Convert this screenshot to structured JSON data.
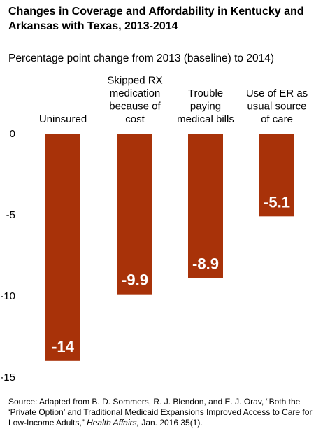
{
  "chart_data": {
    "type": "bar",
    "title": "Changes in Coverage and Affordability in Kentucky and Arkansas with Texas, 2013-2014",
    "subtitle": "Percentage point change from 2013 (baseline) to 2014)",
    "categories": [
      "Uninsured",
      "Skipped RX medication because of cost",
      "Trouble paying medical bills",
      "Use of ER as usual source of care"
    ],
    "category_lines": [
      [
        "Uninsured"
      ],
      [
        "Skipped RX",
        "medication",
        "because of",
        "cost"
      ],
      [
        "Trouble",
        "paying",
        "medical bills"
      ],
      [
        "Use of ER as",
        "usual source",
        "of care"
      ]
    ],
    "values": [
      -14,
      -9.9,
      -8.9,
      -5.1
    ],
    "data_labels": [
      "-14",
      "-9.9",
      "-8.9",
      "-5.1"
    ],
    "yticks": [
      0,
      -5,
      -10,
      -15
    ],
    "ylim": [
      -15,
      0
    ],
    "grid": false,
    "bar_color": "#A83209"
  },
  "source": {
    "prefix": "Source: Adapted from B. D. Sommers, R. J. Blendon, and E. J. Orav, “Both the ‘Private Option’ and Traditional Medicaid Expansions Improved Access to Care for Low-Income Adults,” ",
    "journal": "Health Affairs,",
    "suffix": " Jan. 2016 35(1)."
  }
}
